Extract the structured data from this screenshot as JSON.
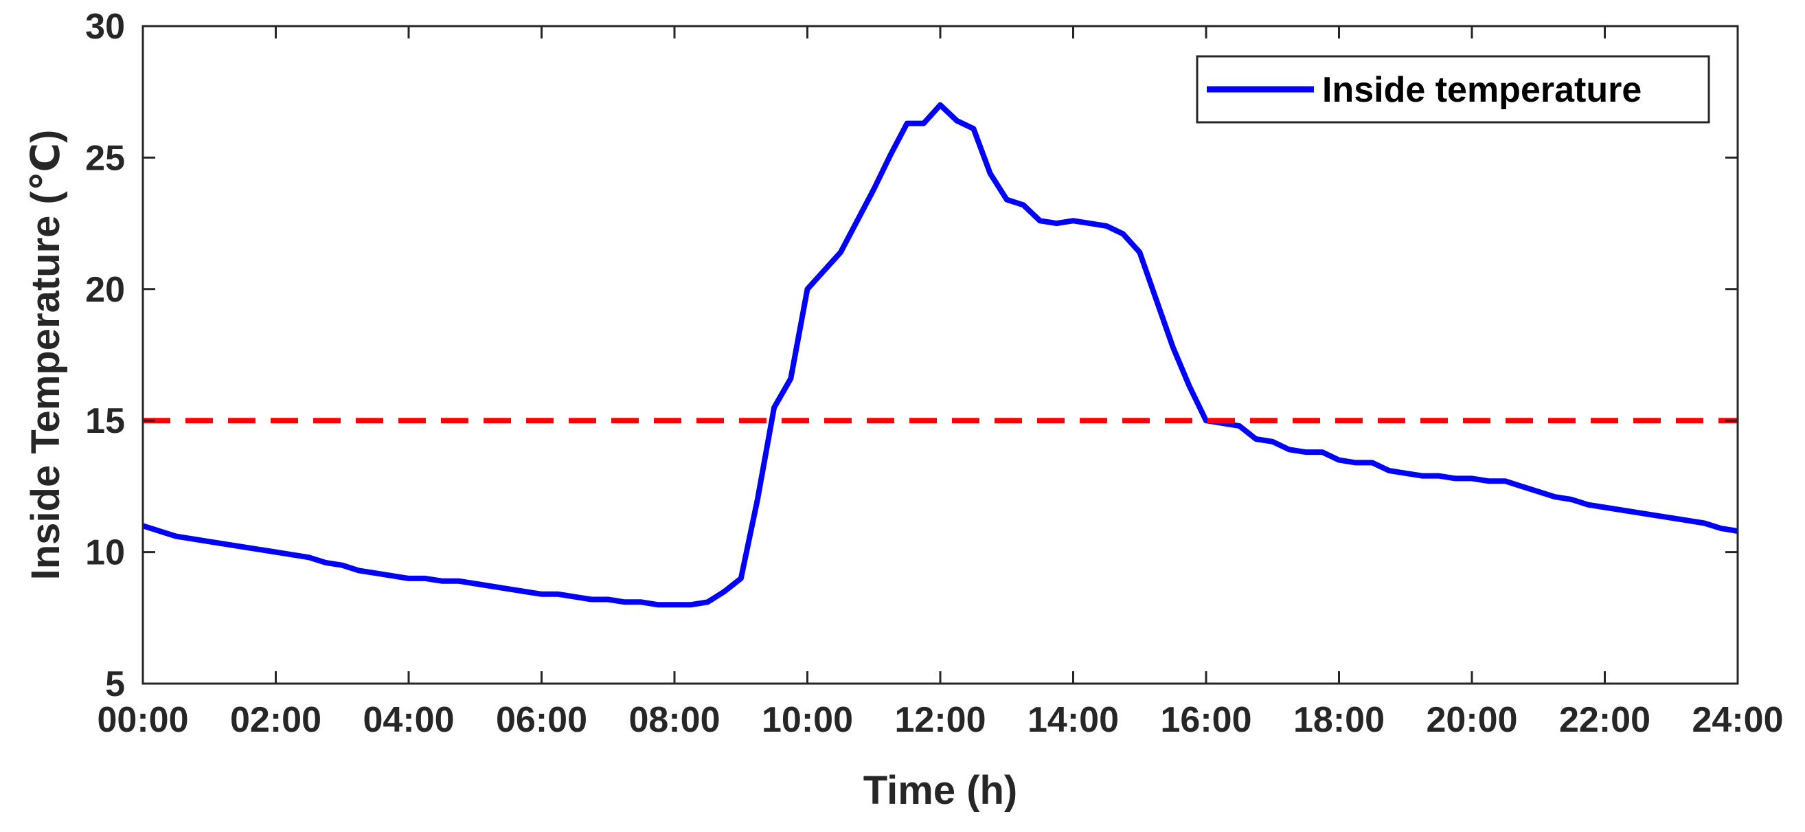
{
  "chart_data": {
    "type": "line",
    "title": "",
    "xlabel": "Time (h)",
    "ylabel": "Inside Temperature (℃)",
    "xlim": [
      0,
      24
    ],
    "ylim": [
      5,
      30
    ],
    "x_ticks": [
      0,
      2,
      4,
      6,
      8,
      10,
      12,
      14,
      16,
      18,
      20,
      22,
      24
    ],
    "x_tick_labels": [
      "00:00",
      "02:00",
      "04:00",
      "06:00",
      "08:00",
      "10:00",
      "12:00",
      "14:00",
      "16:00",
      "18:00",
      "20:00",
      "22:00",
      "24:00"
    ],
    "y_ticks": [
      5,
      10,
      15,
      20,
      25,
      30
    ],
    "y_tick_labels": [
      "5",
      "10",
      "15",
      "20",
      "25",
      "30"
    ],
    "grid": false,
    "legend_position": "top-right",
    "series": [
      {
        "name": "Inside temperature",
        "color": "#0000ff",
        "style": "solid",
        "in_legend": true,
        "x": [
          0,
          0.5,
          1,
          1.5,
          2,
          2.5,
          2.75,
          3,
          3.25,
          3.5,
          4,
          4.25,
          4.5,
          4.75,
          5,
          5.5,
          6,
          6.25,
          6.5,
          6.75,
          7,
          7.25,
          7.5,
          7.75,
          8,
          8.25,
          8.5,
          8.75,
          9,
          9.25,
          9.5,
          9.75,
          10,
          10.5,
          11,
          11.25,
          11.5,
          11.75,
          12,
          12.25,
          12.5,
          12.75,
          13,
          13.25,
          13.5,
          13.75,
          14,
          14.25,
          14.5,
          14.75,
          15,
          15.25,
          15.5,
          15.75,
          16,
          16.5,
          16.75,
          17,
          17.25,
          17.5,
          17.75,
          18,
          18.25,
          18.5,
          18.75,
          19,
          19.25,
          19.5,
          19.75,
          20,
          20.25,
          20.5,
          20.75,
          21,
          21.25,
          21.5,
          21.75,
          22,
          22.5,
          23,
          23.5,
          23.75,
          24
        ],
        "y": [
          11.0,
          10.6,
          10.4,
          10.2,
          10.0,
          9.8,
          9.6,
          9.5,
          9.3,
          9.2,
          9.0,
          9.0,
          8.9,
          8.9,
          8.8,
          8.6,
          8.4,
          8.4,
          8.3,
          8.2,
          8.2,
          8.1,
          8.1,
          8.0,
          8.0,
          8.0,
          8.1,
          8.5,
          9.0,
          12.0,
          15.5,
          16.6,
          20.0,
          21.4,
          23.8,
          25.1,
          26.3,
          26.3,
          27.0,
          26.4,
          26.1,
          24.4,
          23.4,
          23.2,
          22.6,
          22.5,
          22.6,
          22.5,
          22.4,
          22.1,
          21.4,
          19.6,
          17.8,
          16.3,
          15.0,
          14.8,
          14.3,
          14.2,
          13.9,
          13.8,
          13.8,
          13.5,
          13.4,
          13.4,
          13.1,
          13.0,
          12.9,
          12.9,
          12.8,
          12.8,
          12.7,
          12.7,
          12.5,
          12.3,
          12.1,
          12.0,
          11.8,
          11.7,
          11.5,
          11.3,
          11.1,
          10.9,
          10.8
        ]
      },
      {
        "name": "",
        "color": "#ff0000",
        "style": "dashed",
        "in_legend": false,
        "x": [
          0,
          24
        ],
        "y": [
          15.0,
          15.0
        ]
      }
    ]
  }
}
